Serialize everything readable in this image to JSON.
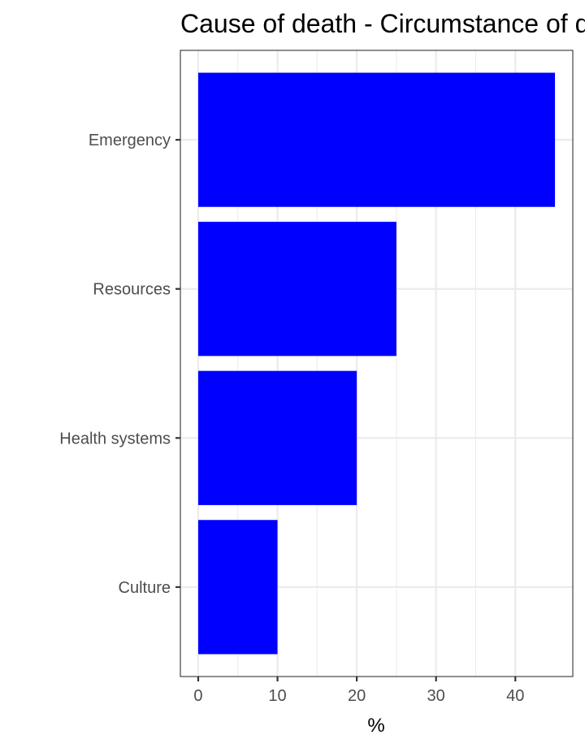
{
  "chart_data": {
    "type": "bar",
    "orientation": "horizontal",
    "title": "Cause of death - Circumstance of death",
    "xlabel": "%",
    "ylabel": "",
    "categories": [
      "Emergency",
      "Resources",
      "Health systems",
      "Culture"
    ],
    "values": [
      45,
      25,
      20,
      10
    ],
    "xlim": [
      -2.25,
      47.25
    ],
    "xticks": [
      0,
      10,
      20,
      30,
      40
    ],
    "grid": true,
    "bar_color": "#0000ff",
    "theme": "bw"
  }
}
